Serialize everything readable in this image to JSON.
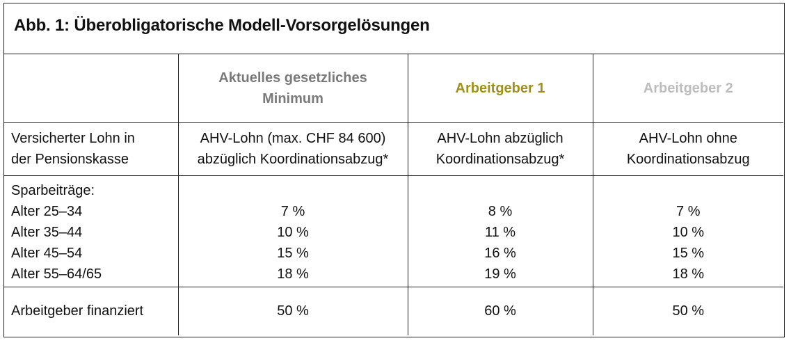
{
  "title": "Abb. 1: Überobligatorische Modell-Vorsorgelösungen",
  "colors": {
    "minimum_header": "#7a7a7a",
    "arbeitgeber1_header": "#a0901a",
    "arbeitgeber2_header": "#bdbdbd",
    "border": "#222222"
  },
  "headers": {
    "minimum": [
      "Aktuelles gesetzliches",
      "Minimum"
    ],
    "arbeitgeber1": "Arbeitgeber 1",
    "arbeitgeber2": "Arbeitgeber 2"
  },
  "rows": {
    "lohn": {
      "label": [
        "Versicherter Lohn in",
        "der Pensionskasse"
      ],
      "minimum": [
        "AHV-Lohn (max. CHF 84 600)",
        "abzüglich Koordinationsabzug*"
      ],
      "arbeitgeber1": [
        "AHV-Lohn abzüglich",
        "Koordinationsabzug*"
      ],
      "arbeitgeber2": [
        "AHV-Lohn ohne",
        "Koordinationsabzug"
      ]
    },
    "spar": {
      "label": "Sparbeiträge:",
      "ages": [
        "Alter 25–34",
        "Alter 35–44",
        "Alter 45–54",
        "Alter 55–64/65"
      ],
      "minimum": [
        "7 %",
        "10 %",
        "15 %",
        "18 %"
      ],
      "arbeitgeber1": [
        "8 %",
        "11 %",
        "16 %",
        "19 %"
      ],
      "arbeitgeber2": [
        "7 %",
        "10 %",
        "15 %",
        "18 %"
      ]
    },
    "finanziert": {
      "label": "Arbeitgeber finanziert",
      "minimum": "50 %",
      "arbeitgeber1": "60 %",
      "arbeitgeber2": "50 %"
    }
  }
}
